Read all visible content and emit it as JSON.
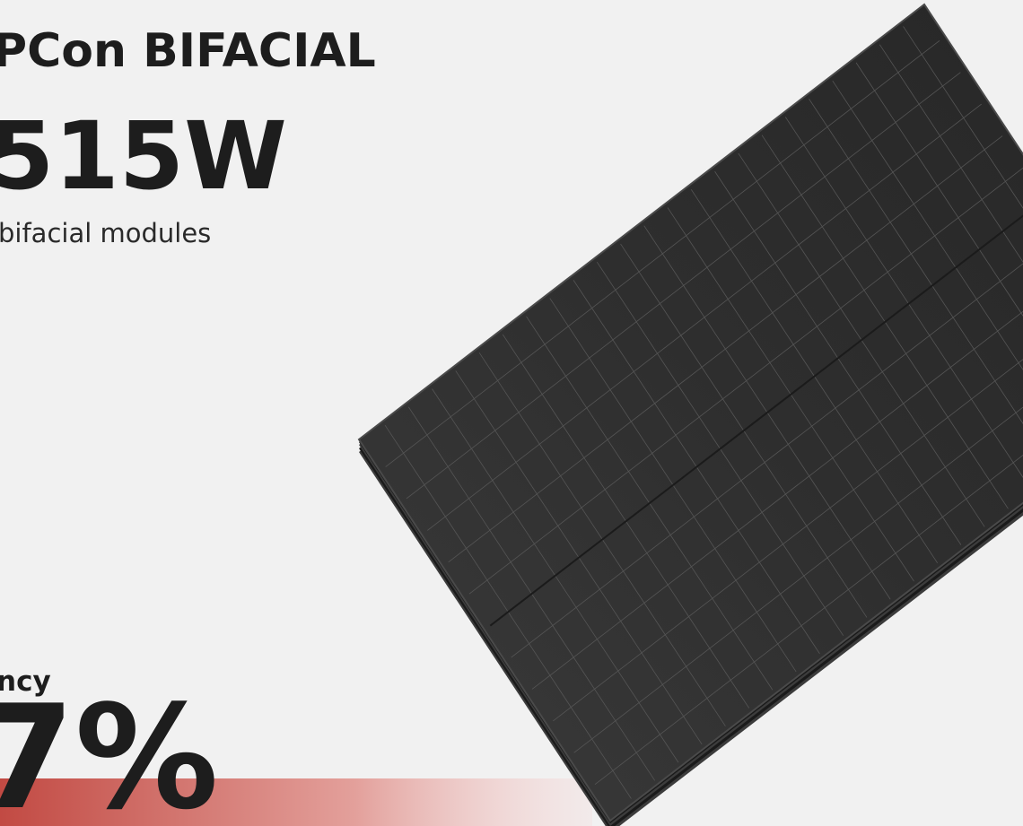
{
  "header": {
    "title": "PCon BIFACIAL",
    "power": "515W",
    "subtitle": "bifacial modules"
  },
  "efficiency": {
    "label": "ncy",
    "value": "7%"
  }
}
